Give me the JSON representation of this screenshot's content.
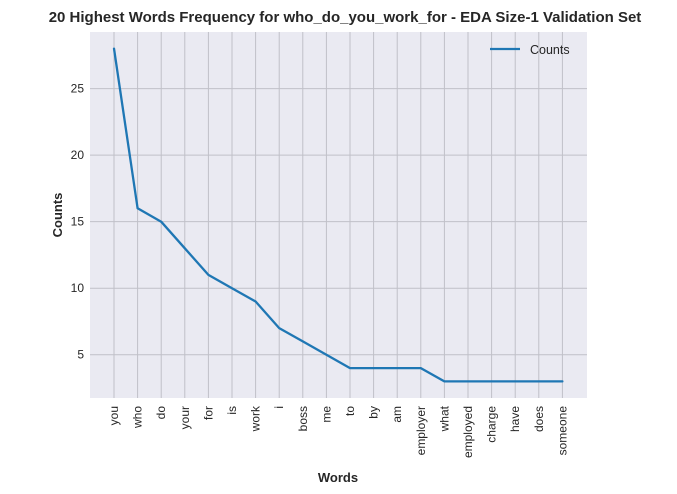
{
  "chart_data": {
    "type": "line",
    "title": "20 Highest Words Frequency for who_do_you_work_for - EDA Size-1 Validation Set",
    "xlabel": "Words",
    "ylabel": "Counts",
    "categories": [
      "you",
      "who",
      "do",
      "your",
      "for",
      "is",
      "work",
      "i",
      "boss",
      "me",
      "to",
      "by",
      "am",
      "employer",
      "what",
      "employed",
      "charge",
      "have",
      "does",
      "someone"
    ],
    "series": [
      {
        "name": "Counts",
        "values": [
          28,
          16,
          15,
          13,
          11,
          10,
          9,
          7,
          6,
          5,
          4,
          4,
          4,
          4,
          3,
          3,
          3,
          3,
          3,
          3
        ]
      }
    ],
    "ylim": [
      1.75,
      29.25
    ],
    "yticks": [
      5,
      10,
      15,
      20,
      25
    ],
    "grid": true,
    "legend_position": "top-right",
    "colors": {
      "line": "#1f77b4",
      "plot_background": "#eaeaf2",
      "grid": "#c0c0c8",
      "text": "#262626"
    }
  }
}
